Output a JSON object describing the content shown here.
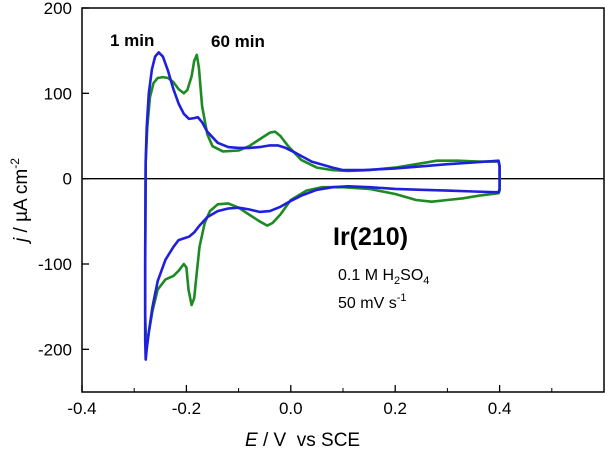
{
  "chart_data": {
    "type": "line",
    "xlabel": {
      "symbol": "E",
      "rest": " / V  vs SCE"
    },
    "ylabel": {
      "symbol": "j",
      "rest": " / µA cm",
      "sup": "-2"
    },
    "xlim": [
      -0.4,
      0.6
    ],
    "ylim": [
      -250,
      200
    ],
    "xticks": [
      -0.4,
      -0.2,
      0.0,
      0.2,
      0.4
    ],
    "xtick_labels": [
      "-0.4",
      "-0.2",
      "0.0",
      "0.2",
      "0.4"
    ],
    "yticks": [
      -200,
      -100,
      0,
      100,
      200
    ],
    "ytick_labels": [
      "-200",
      "-100",
      "0",
      "100",
      "200"
    ],
    "zero_line": true,
    "annotations": {
      "sample": "Ir(210)",
      "electrolyte": {
        "pre": "0.1 M H",
        "sub1": "2",
        "mid": "SO",
        "sub2": "4"
      },
      "scan_rate": {
        "pre": "50 mV s",
        "sup": "-1"
      }
    },
    "series": [
      {
        "name": "1 min",
        "color": "#1f1fdd",
        "points": [
          [
            -0.278,
            20
          ],
          [
            -0.276,
            60
          ],
          [
            -0.272,
            100
          ],
          [
            -0.266,
            128
          ],
          [
            -0.26,
            143
          ],
          [
            -0.253,
            148
          ],
          [
            -0.245,
            143
          ],
          [
            -0.235,
            126
          ],
          [
            -0.225,
            105
          ],
          [
            -0.215,
            88
          ],
          [
            -0.205,
            76
          ],
          [
            -0.195,
            70
          ],
          [
            -0.185,
            71
          ],
          [
            -0.178,
            72
          ],
          [
            -0.17,
            66
          ],
          [
            -0.16,
            55
          ],
          [
            -0.14,
            42
          ],
          [
            -0.12,
            37
          ],
          [
            -0.1,
            36
          ],
          [
            -0.08,
            36
          ],
          [
            -0.06,
            37
          ],
          [
            -0.04,
            39
          ],
          [
            -0.025,
            39
          ],
          [
            -0.01,
            36
          ],
          [
            0.01,
            30
          ],
          [
            0.04,
            20
          ],
          [
            0.08,
            13
          ],
          [
            0.1,
            10
          ],
          [
            0.14,
            10
          ],
          [
            0.2,
            12
          ],
          [
            0.26,
            15
          ],
          [
            0.3,
            17
          ],
          [
            0.35,
            19
          ],
          [
            0.398,
            21
          ],
          [
            0.4,
            15
          ],
          [
            0.4,
            -12
          ],
          [
            0.398,
            -16
          ],
          [
            0.35,
            -15
          ],
          [
            0.3,
            -14
          ],
          [
            0.25,
            -13
          ],
          [
            0.2,
            -12
          ],
          [
            0.15,
            -10
          ],
          [
            0.11,
            -9
          ],
          [
            0.08,
            -10
          ],
          [
            0.05,
            -13
          ],
          [
            0.02,
            -20
          ],
          [
            0.0,
            -26
          ],
          [
            -0.02,
            -33
          ],
          [
            -0.04,
            -38
          ],
          [
            -0.06,
            -39
          ],
          [
            -0.08,
            -36
          ],
          [
            -0.1,
            -34
          ],
          [
            -0.12,
            -35
          ],
          [
            -0.14,
            -38
          ],
          [
            -0.16,
            -45
          ],
          [
            -0.175,
            -55
          ],
          [
            -0.185,
            -63
          ],
          [
            -0.195,
            -68
          ],
          [
            -0.205,
            -70
          ],
          [
            -0.215,
            -72
          ],
          [
            -0.225,
            -80
          ],
          [
            -0.24,
            -95
          ],
          [
            -0.255,
            -120
          ],
          [
            -0.265,
            -150
          ],
          [
            -0.272,
            -180
          ],
          [
            -0.276,
            -200
          ],
          [
            -0.278,
            -212
          ],
          [
            -0.279,
            -190
          ],
          [
            -0.279,
            -100
          ],
          [
            -0.278,
            20
          ]
        ]
      },
      {
        "name": "60 min",
        "color": "#1e8a23",
        "points": [
          [
            -0.278,
            20
          ],
          [
            -0.275,
            60
          ],
          [
            -0.27,
            95
          ],
          [
            -0.263,
            112
          ],
          [
            -0.255,
            118
          ],
          [
            -0.245,
            119
          ],
          [
            -0.235,
            118
          ],
          [
            -0.225,
            113
          ],
          [
            -0.215,
            105
          ],
          [
            -0.205,
            100
          ],
          [
            -0.198,
            104
          ],
          [
            -0.19,
            120
          ],
          [
            -0.185,
            138
          ],
          [
            -0.18,
            145
          ],
          [
            -0.176,
            130
          ],
          [
            -0.17,
            85
          ],
          [
            -0.16,
            52
          ],
          [
            -0.15,
            38
          ],
          [
            -0.13,
            32
          ],
          [
            -0.1,
            33
          ],
          [
            -0.08,
            38
          ],
          [
            -0.06,
            46
          ],
          [
            -0.04,
            54
          ],
          [
            -0.03,
            55
          ],
          [
            -0.02,
            50
          ],
          [
            -0.005,
            38
          ],
          [
            0.02,
            22
          ],
          [
            0.05,
            13
          ],
          [
            0.08,
            10
          ],
          [
            0.11,
            9
          ],
          [
            0.15,
            10
          ],
          [
            0.2,
            13
          ],
          [
            0.25,
            18
          ],
          [
            0.28,
            21
          ],
          [
            0.32,
            21
          ],
          [
            0.36,
            20
          ],
          [
            0.398,
            20
          ],
          [
            0.4,
            14
          ],
          [
            0.4,
            -14
          ],
          [
            0.398,
            -17
          ],
          [
            0.36,
            -20
          ],
          [
            0.33,
            -23
          ],
          [
            0.3,
            -25
          ],
          [
            0.27,
            -27
          ],
          [
            0.24,
            -25
          ],
          [
            0.2,
            -18
          ],
          [
            0.15,
            -12
          ],
          [
            0.1,
            -10
          ],
          [
            0.06,
            -10
          ],
          [
            0.03,
            -14
          ],
          [
            0.0,
            -25
          ],
          [
            -0.02,
            -42
          ],
          [
            -0.035,
            -52
          ],
          [
            -0.045,
            -55
          ],
          [
            -0.06,
            -50
          ],
          [
            -0.08,
            -42
          ],
          [
            -0.1,
            -34
          ],
          [
            -0.12,
            -29
          ],
          [
            -0.14,
            -30
          ],
          [
            -0.155,
            -38
          ],
          [
            -0.165,
            -52
          ],
          [
            -0.175,
            -80
          ],
          [
            -0.18,
            -110
          ],
          [
            -0.185,
            -140
          ],
          [
            -0.19,
            -148
          ],
          [
            -0.196,
            -130
          ],
          [
            -0.2,
            -104
          ],
          [
            -0.205,
            -100
          ],
          [
            -0.215,
            -108
          ],
          [
            -0.225,
            -114
          ],
          [
            -0.24,
            -118
          ],
          [
            -0.255,
            -130
          ],
          [
            -0.265,
            -155
          ],
          [
            -0.272,
            -180
          ],
          [
            -0.277,
            -200
          ],
          [
            -0.279,
            -160
          ],
          [
            -0.279,
            -80
          ],
          [
            -0.278,
            20
          ]
        ]
      }
    ]
  }
}
